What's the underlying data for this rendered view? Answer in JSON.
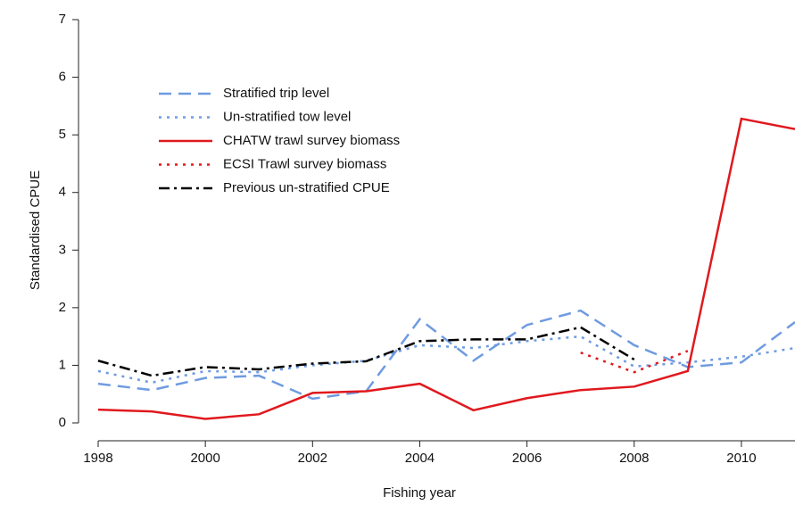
{
  "chart_data": {
    "type": "line",
    "x_label": "Fishing year",
    "y_label": "Standardised CPUE",
    "x": [
      1998,
      1999,
      2000,
      2001,
      2002,
      2003,
      2004,
      2005,
      2006,
      2007,
      2008,
      2009,
      2010,
      2011
    ],
    "xlim": [
      1998,
      2011
    ],
    "xticks": [
      1998,
      2000,
      2002,
      2004,
      2006,
      2008,
      2010
    ],
    "ylim": [
      0,
      7
    ],
    "yticks": [
      0,
      1,
      2,
      3,
      4,
      5,
      6,
      7
    ],
    "legend_position": "upper-left",
    "series": [
      {
        "name": "Stratified trip level",
        "color": "#6f9be0",
        "line_style": "dashed",
        "values": [
          0.68,
          0.57,
          0.78,
          0.82,
          0.42,
          0.55,
          1.8,
          1.08,
          1.7,
          1.95,
          1.35,
          0.97,
          1.05,
          1.75
        ]
      },
      {
        "name": "Un-stratified tow level",
        "color": "#6f9be0",
        "line_style": "dotted",
        "values": [
          0.9,
          0.7,
          0.9,
          0.88,
          1.0,
          1.08,
          1.35,
          1.3,
          1.42,
          1.5,
          0.98,
          1.05,
          1.15,
          1.3
        ]
      },
      {
        "name": "CHATW trawl survey biomass",
        "color": "#e0191e",
        "line_style": "solid",
        "values": [
          0.23,
          0.2,
          0.07,
          0.15,
          0.52,
          0.55,
          0.68,
          0.22,
          0.43,
          0.57,
          0.63,
          0.9,
          5.28,
          5.1
        ]
      },
      {
        "name": "ECSI Trawl survey biomass",
        "color": "#e0191e",
        "line_style": "dotted",
        "values": [
          null,
          null,
          null,
          null,
          null,
          null,
          null,
          null,
          null,
          1.22,
          0.88,
          1.25,
          null,
          null
        ]
      },
      {
        "name": "Previous un-stratified CPUE",
        "color": "#000000",
        "line_style": "dashdot",
        "values": [
          1.08,
          0.82,
          0.97,
          0.93,
          1.03,
          1.07,
          1.42,
          1.45,
          1.45,
          1.66,
          1.1,
          null,
          null,
          null
        ]
      }
    ]
  }
}
